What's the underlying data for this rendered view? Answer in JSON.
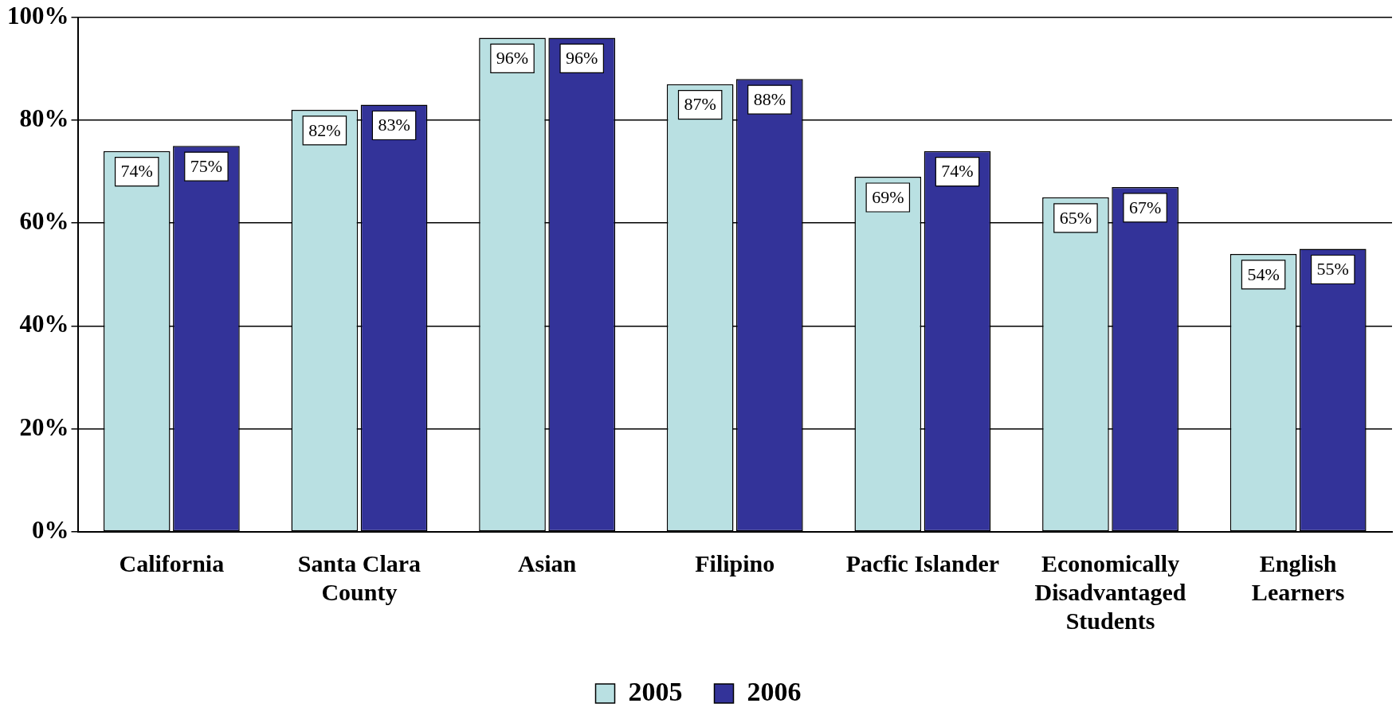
{
  "chart_data": {
    "type": "bar",
    "categories": [
      "California",
      "Santa Clara County",
      "Asian",
      "Filipino",
      "Pacfic Islander",
      "Economically Disadvantaged Students",
      "English Learners"
    ],
    "series": [
      {
        "name": "2005",
        "color": "#b9e0e2",
        "values": [
          74,
          82,
          96,
          87,
          69,
          65,
          54
        ],
        "value_labels": [
          "74%",
          "82%",
          "96%",
          "87%",
          "69%",
          "65%",
          "54%"
        ]
      },
      {
        "name": "2006",
        "color": "#333399",
        "values": [
          75,
          83,
          96,
          88,
          74,
          67,
          55
        ],
        "value_labels": [
          "75%",
          "83%",
          "96%",
          "88%",
          "74%",
          "67%",
          "55%"
        ]
      }
    ],
    "ylim": [
      0,
      100
    ],
    "yticks": [
      {
        "value": 0,
        "label": "0%"
      },
      {
        "value": 20,
        "label": "20%"
      },
      {
        "value": 40,
        "label": "40%"
      },
      {
        "value": 60,
        "label": "60%"
      },
      {
        "value": 80,
        "label": "80%"
      },
      {
        "value": 100,
        "label": "100%"
      }
    ],
    "grid": "y",
    "legend": "bottom"
  }
}
